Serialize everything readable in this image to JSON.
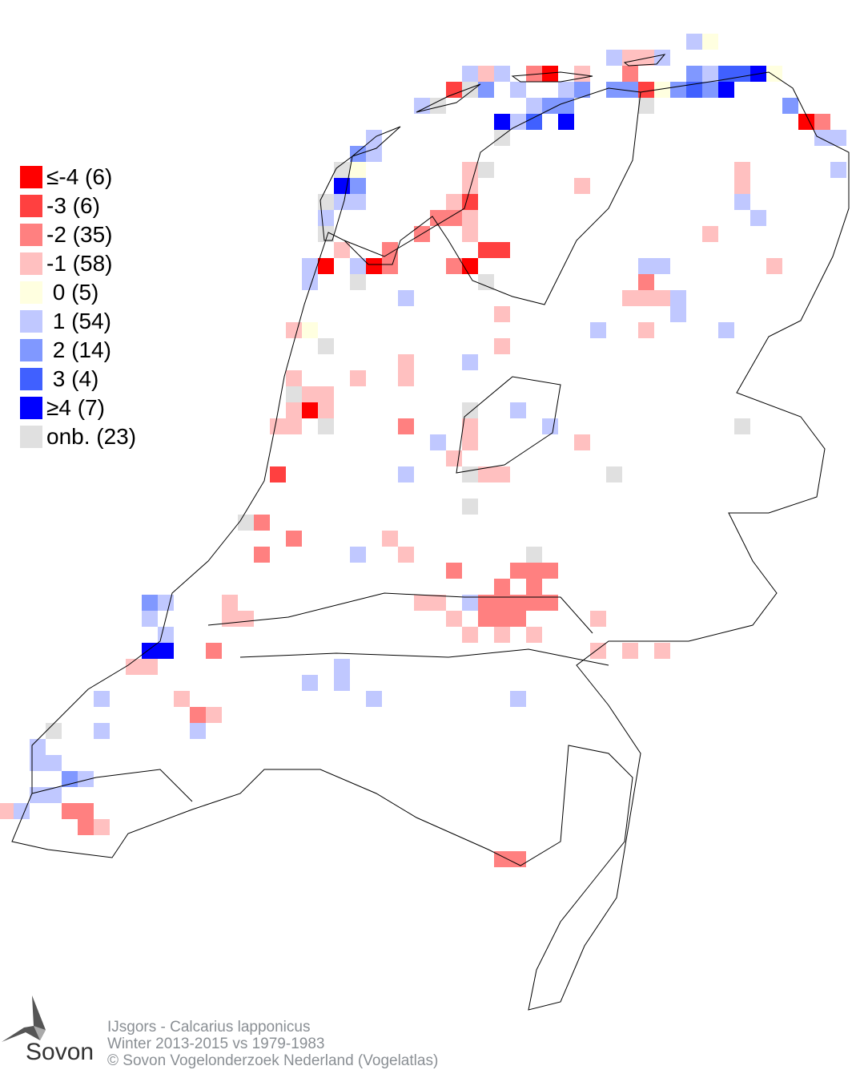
{
  "legend": [
    {
      "key": "-4",
      "label": "≤-4 (6)",
      "color": "#ff0000"
    },
    {
      "key": "-3",
      "label": "-3 (6)",
      "color": "#ff4040"
    },
    {
      "key": "-2",
      "label": "-2 (35)",
      "color": "#ff8080"
    },
    {
      "key": "-1",
      "label": "-1 (58)",
      "color": "#ffc0c0"
    },
    {
      "key": "0",
      "label": " 0 (5)",
      "color": "#ffffe0"
    },
    {
      "key": "1",
      "label": " 1 (54)",
      "color": "#c0c8ff"
    },
    {
      "key": "2",
      "label": " 2 (14)",
      "color": "#8098ff"
    },
    {
      "key": "3",
      "label": " 3 (4)",
      "color": "#4060ff"
    },
    {
      "key": "4",
      "label": "≥4 (7)",
      "color": "#0000ff"
    },
    {
      "key": "onb",
      "label": "onb. (23)",
      "color": "#e0e0e0"
    }
  ],
  "grid_cells": [
    [
      42,
      2,
      "1"
    ],
    [
      43,
      2,
      "0"
    ],
    [
      37,
      3,
      "1"
    ],
    [
      38,
      3,
      "-1"
    ],
    [
      39,
      3,
      "-1"
    ],
    [
      40,
      3,
      "1"
    ],
    [
      28,
      4,
      "1"
    ],
    [
      29,
      4,
      "-1"
    ],
    [
      30,
      4,
      "1"
    ],
    [
      32,
      4,
      "-2"
    ],
    [
      33,
      4,
      "-4"
    ],
    [
      35,
      4,
      "-1"
    ],
    [
      38,
      4,
      "-2"
    ],
    [
      42,
      4,
      "2"
    ],
    [
      43,
      4,
      "1"
    ],
    [
      44,
      4,
      "3"
    ],
    [
      45,
      4,
      "3"
    ],
    [
      46,
      4,
      "4"
    ],
    [
      47,
      4,
      "0"
    ],
    [
      27,
      5,
      "-3"
    ],
    [
      28,
      5,
      "onb"
    ],
    [
      29,
      5,
      "2"
    ],
    [
      31,
      5,
      "1"
    ],
    [
      34,
      5,
      "1"
    ],
    [
      35,
      5,
      "2"
    ],
    [
      37,
      5,
      "2"
    ],
    [
      38,
      5,
      "2"
    ],
    [
      39,
      5,
      "-3"
    ],
    [
      40,
      5,
      "0"
    ],
    [
      41,
      5,
      "2"
    ],
    [
      42,
      5,
      "3"
    ],
    [
      43,
      5,
      "2"
    ],
    [
      44,
      5,
      "4"
    ],
    [
      25,
      6,
      "1"
    ],
    [
      26,
      6,
      "onb"
    ],
    [
      32,
      6,
      "1"
    ],
    [
      33,
      6,
      "2"
    ],
    [
      34,
      6,
      "2"
    ],
    [
      39,
      6,
      "onb"
    ],
    [
      48,
      6,
      "2"
    ],
    [
      30,
      7,
      "4"
    ],
    [
      31,
      7,
      "1"
    ],
    [
      32,
      7,
      "3"
    ],
    [
      34,
      7,
      "4"
    ],
    [
      49,
      7,
      "-4"
    ],
    [
      50,
      7,
      "-2"
    ],
    [
      22,
      8,
      "1"
    ],
    [
      30,
      8,
      "onb"
    ],
    [
      50,
      8,
      "1"
    ],
    [
      51,
      8,
      "1"
    ],
    [
      21,
      9,
      "2"
    ],
    [
      22,
      9,
      "1"
    ],
    [
      20,
      10,
      "onb"
    ],
    [
      21,
      10,
      "0"
    ],
    [
      28,
      10,
      "-1"
    ],
    [
      29,
      10,
      "onb"
    ],
    [
      45,
      10,
      "-1"
    ],
    [
      51,
      10,
      "1"
    ],
    [
      20,
      11,
      "4"
    ],
    [
      21,
      11,
      "2"
    ],
    [
      28,
      11,
      "-1"
    ],
    [
      35,
      11,
      "-1"
    ],
    [
      45,
      11,
      "-1"
    ],
    [
      19,
      12,
      "onb"
    ],
    [
      20,
      12,
      "1"
    ],
    [
      21,
      12,
      "1"
    ],
    [
      27,
      12,
      "-1"
    ],
    [
      28,
      12,
      "-3"
    ],
    [
      45,
      12,
      "1"
    ],
    [
      19,
      13,
      "1"
    ],
    [
      26,
      13,
      "-2"
    ],
    [
      27,
      13,
      "-2"
    ],
    [
      28,
      13,
      "-1"
    ],
    [
      46,
      13,
      "1"
    ],
    [
      19,
      14,
      "onb"
    ],
    [
      25,
      14,
      "-2"
    ],
    [
      28,
      14,
      "-1"
    ],
    [
      43,
      14,
      "-1"
    ],
    [
      20,
      15,
      "-1"
    ],
    [
      23,
      15,
      "-2"
    ],
    [
      29,
      15,
      "-3"
    ],
    [
      30,
      15,
      "-3"
    ],
    [
      18,
      16,
      "1"
    ],
    [
      19,
      16,
      "-4"
    ],
    [
      21,
      16,
      "1"
    ],
    [
      22,
      16,
      "-4"
    ],
    [
      23,
      16,
      "-2"
    ],
    [
      27,
      16,
      "-2"
    ],
    [
      28,
      16,
      "-4"
    ],
    [
      39,
      16,
      "1"
    ],
    [
      40,
      16,
      "1"
    ],
    [
      47,
      16,
      "-1"
    ],
    [
      18,
      17,
      "1"
    ],
    [
      21,
      17,
      "onb"
    ],
    [
      29,
      17,
      "onb"
    ],
    [
      39,
      17,
      "-2"
    ],
    [
      24,
      18,
      "1"
    ],
    [
      38,
      18,
      "-1"
    ],
    [
      39,
      18,
      "-1"
    ],
    [
      40,
      18,
      "-1"
    ],
    [
      41,
      18,
      "1"
    ],
    [
      30,
      19,
      "-1"
    ],
    [
      41,
      19,
      "1"
    ],
    [
      17,
      20,
      "-1"
    ],
    [
      18,
      20,
      "0"
    ],
    [
      36,
      20,
      "1"
    ],
    [
      39,
      20,
      "-1"
    ],
    [
      44,
      20,
      "1"
    ],
    [
      19,
      21,
      "onb"
    ],
    [
      30,
      21,
      "-1"
    ],
    [
      24,
      22,
      "-1"
    ],
    [
      28,
      22,
      "1"
    ],
    [
      17,
      23,
      "-1"
    ],
    [
      21,
      23,
      "-1"
    ],
    [
      24,
      23,
      "-1"
    ],
    [
      17,
      24,
      "onb"
    ],
    [
      18,
      24,
      "-1"
    ],
    [
      19,
      24,
      "-1"
    ],
    [
      17,
      25,
      "-1"
    ],
    [
      18,
      25,
      "-4"
    ],
    [
      19,
      25,
      "-1"
    ],
    [
      28,
      25,
      "onb"
    ],
    [
      31,
      25,
      "1"
    ],
    [
      16,
      26,
      "-1"
    ],
    [
      17,
      26,
      "-1"
    ],
    [
      19,
      26,
      "onb"
    ],
    [
      24,
      26,
      "-2"
    ],
    [
      28,
      26,
      "-1"
    ],
    [
      33,
      26,
      "1"
    ],
    [
      45,
      26,
      "onb"
    ],
    [
      26,
      27,
      "1"
    ],
    [
      28,
      27,
      "-1"
    ],
    [
      35,
      27,
      "-1"
    ],
    [
      27,
      28,
      "-1"
    ],
    [
      16,
      29,
      "-3"
    ],
    [
      24,
      29,
      "1"
    ],
    [
      28,
      29,
      "onb"
    ],
    [
      29,
      29,
      "-1"
    ],
    [
      30,
      29,
      "-1"
    ],
    [
      37,
      29,
      "onb"
    ],
    [
      28,
      31,
      "onb"
    ],
    [
      14,
      32,
      "onb"
    ],
    [
      15,
      32,
      "-2"
    ],
    [
      17,
      33,
      "-2"
    ],
    [
      23,
      33,
      "-1"
    ],
    [
      15,
      34,
      "-2"
    ],
    [
      21,
      34,
      "1"
    ],
    [
      24,
      34,
      "-1"
    ],
    [
      32,
      34,
      "onb"
    ],
    [
      27,
      35,
      "-2"
    ],
    [
      31,
      35,
      "-2"
    ],
    [
      32,
      35,
      "-2"
    ],
    [
      33,
      35,
      "-2"
    ],
    [
      30,
      36,
      "-2"
    ],
    [
      32,
      36,
      "-2"
    ],
    [
      8,
      37,
      "2"
    ],
    [
      9,
      37,
      "1"
    ],
    [
      13,
      37,
      "-1"
    ],
    [
      25,
      37,
      "-1"
    ],
    [
      26,
      37,
      "-1"
    ],
    [
      28,
      37,
      "1"
    ],
    [
      29,
      37,
      "-2"
    ],
    [
      30,
      37,
      "-2"
    ],
    [
      31,
      37,
      "-2"
    ],
    [
      32,
      37,
      "-2"
    ],
    [
      33,
      37,
      "-2"
    ],
    [
      8,
      38,
      "1"
    ],
    [
      13,
      38,
      "-1"
    ],
    [
      14,
      38,
      "-1"
    ],
    [
      27,
      38,
      "-1"
    ],
    [
      29,
      38,
      "-2"
    ],
    [
      30,
      38,
      "-2"
    ],
    [
      31,
      38,
      "-2"
    ],
    [
      36,
      38,
      "-1"
    ],
    [
      9,
      39,
      "1"
    ],
    [
      28,
      39,
      "-1"
    ],
    [
      30,
      39,
      "-1"
    ],
    [
      32,
      39,
      "-1"
    ],
    [
      8,
      40,
      "4"
    ],
    [
      9,
      40,
      "4"
    ],
    [
      12,
      40,
      "-2"
    ],
    [
      36,
      40,
      "-1"
    ],
    [
      38,
      40,
      "-1"
    ],
    [
      40,
      40,
      "-1"
    ],
    [
      7,
      41,
      "-1"
    ],
    [
      8,
      41,
      "-1"
    ],
    [
      20,
      41,
      "1"
    ],
    [
      18,
      42,
      "1"
    ],
    [
      20,
      42,
      "1"
    ],
    [
      5,
      43,
      "1"
    ],
    [
      10,
      43,
      "-1"
    ],
    [
      22,
      43,
      "1"
    ],
    [
      31,
      43,
      "1"
    ],
    [
      11,
      44,
      "-2"
    ],
    [
      12,
      44,
      "-1"
    ],
    [
      2,
      45,
      "onb"
    ],
    [
      5,
      45,
      "1"
    ],
    [
      11,
      45,
      "1"
    ],
    [
      1,
      46,
      "1"
    ],
    [
      1,
      47,
      "1"
    ],
    [
      2,
      47,
      "1"
    ],
    [
      3,
      48,
      "2"
    ],
    [
      4,
      48,
      "1"
    ],
    [
      1,
      49,
      "1"
    ],
    [
      2,
      49,
      "1"
    ],
    [
      -1,
      50,
      "-1"
    ],
    [
      0,
      50,
      "1"
    ],
    [
      3,
      50,
      "-2"
    ],
    [
      4,
      50,
      "-2"
    ],
    [
      4,
      51,
      "-2"
    ],
    [
      5,
      51,
      "-1"
    ],
    [
      30,
      53,
      "-2"
    ],
    [
      31,
      53,
      "-2"
    ]
  ],
  "footer": {
    "line1": "IJsgors - Calcarius lapponicus",
    "line2": "Winter 2013-2015 vs 1979-1983",
    "line3": "© Sovon Vogelonderzoek Nederland (Vogelatlas)"
  },
  "logo": {
    "text": "Sovon"
  }
}
